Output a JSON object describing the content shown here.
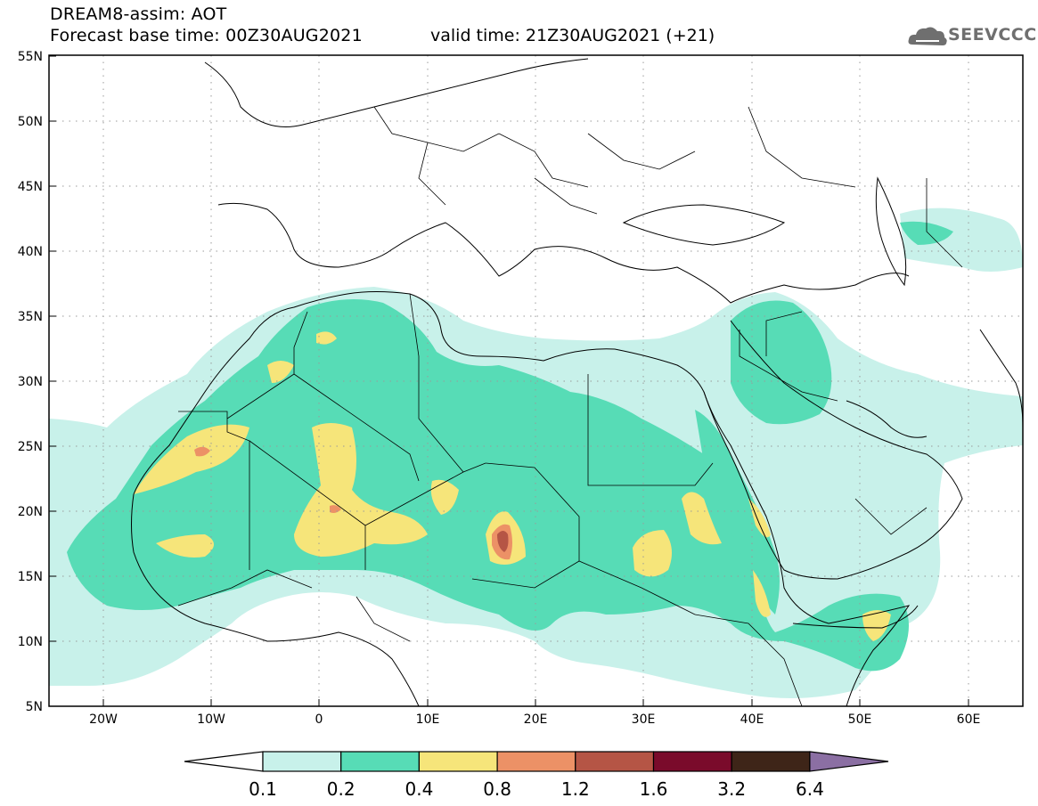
{
  "header": {
    "title": "DREAM8-assim: AOT",
    "base_time": "Forecast base time: 00Z30AUG2021",
    "valid_time": "valid time: 21Z30AUG2021 (+21)"
  },
  "logo": {
    "text": "SEEVCCC",
    "icon": "cloud-icon"
  },
  "map": {
    "lon_range": [
      -25,
      65
    ],
    "lat_range": [
      5,
      55
    ],
    "lat_ticks": [
      "5N",
      "10N",
      "15N",
      "20N",
      "25N",
      "30N",
      "35N",
      "40N",
      "45N",
      "50N",
      "55N"
    ],
    "lon_ticks": [
      "20W",
      "10W",
      "0",
      "10E",
      "20E",
      "30E",
      "40E",
      "50E",
      "60E"
    ],
    "gridlines": "dotted"
  },
  "colorbar": {
    "levels": [
      "0.1",
      "0.2",
      "0.4",
      "0.8",
      "1.2",
      "1.6",
      "3.2",
      "6.4"
    ],
    "colors": [
      "#ffffff",
      "#c8f1ea",
      "#57dcb6",
      "#f6e57a",
      "#ec9166",
      "#b55545",
      "#7a0b2b",
      "#3e2518",
      "#8b6fa3"
    ]
  }
}
